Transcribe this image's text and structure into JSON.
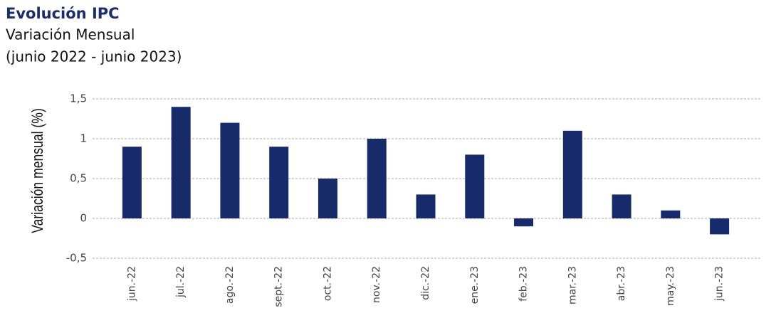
{
  "chart_data": {
    "type": "bar",
    "title": "Evolución IPC",
    "subtitle": "Variación Mensual",
    "subtitle2": "(junio 2022 - junio 2023)",
    "y_label": "Variación mensual (%)",
    "categories": [
      "jun.-22",
      "jul.-22",
      "ago.-22",
      "sept.-22",
      "oct.-22",
      "nov.-22",
      "dic.-22",
      "ene.-23",
      "feb.-23",
      "mar.-23",
      "abr.-23",
      "may.-23",
      "jun.-23"
    ],
    "values": [
      0.9,
      1.4,
      1.2,
      0.9,
      0.5,
      1.0,
      0.3,
      0.8,
      -0.1,
      1.1,
      0.3,
      0.1,
      -0.2
    ],
    "color": "#172b6b",
    "ylim": [
      -0.5,
      1.5
    ],
    "yticks": [
      {
        "value": -0.5,
        "label": "-0,5"
      },
      0,
      {
        "value": 0.5,
        "label": "0,5"
      },
      1,
      {
        "value": 1.5,
        "label": "1,5"
      }
    ],
    "grid": true
  }
}
